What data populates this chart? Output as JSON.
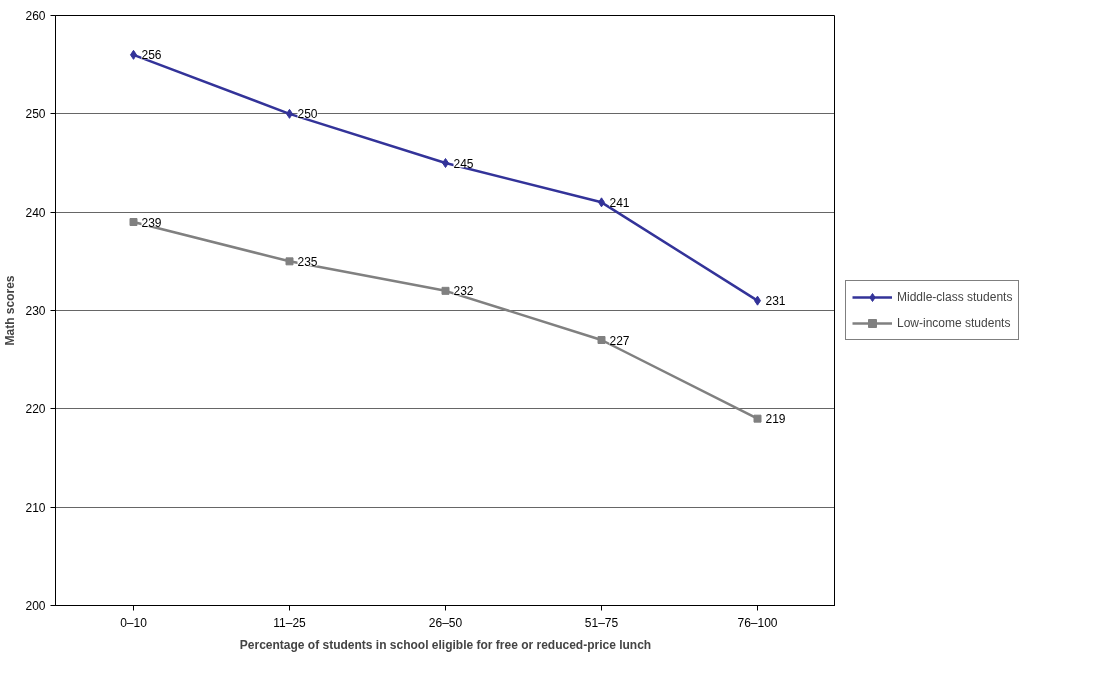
{
  "chart_data": {
    "type": "line",
    "xlabel": "Percentage of students in school eligible for free or reduced-price lunch",
    "ylabel": "Math scores",
    "categories": [
      "0–10",
      "11–25",
      "26–50",
      "51–75",
      "76–100"
    ],
    "series": [
      {
        "name": "Middle-class students",
        "color": "#333399",
        "marker": "diamond",
        "values": [
          256,
          250,
          245,
          241,
          231
        ]
      },
      {
        "name": "Low-income students",
        "color": "#808080",
        "marker": "square",
        "values": [
          239,
          235,
          232,
          227,
          219
        ]
      }
    ],
    "ylim": [
      200,
      260
    ],
    "yticks": [
      200,
      210,
      220,
      230,
      240,
      250,
      260
    ],
    "grid": "y",
    "legend": "right",
    "data_labels": true,
    "line_style": "solid"
  }
}
